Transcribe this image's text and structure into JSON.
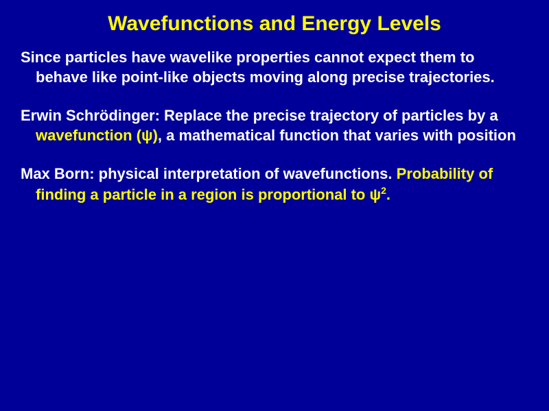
{
  "title": "Wavefunctions and Energy Levels",
  "para1": "Since particles have wavelike properties cannot expect them to behave like point-like objects moving along precise trajectories.",
  "para2_pre": "Erwin Schrödinger: Replace the precise trajectory of particles by a ",
  "para2_hl1": "wavefunction (",
  "para2_psi": "ψ",
  "para2_hl2": ")",
  "para2_post": ", a mathematical function that varies with position",
  "para3_pre": "Max Born: physical interpretation of wavefunctions. ",
  "para3_hl1": "Probability of finding a particle in a region is proportional to ",
  "para3_psi": "ψ",
  "para3_sup": "2",
  "para3_hl2": ".",
  "colors": {
    "background": "#000099",
    "text": "#ffffff",
    "highlight": "#ffff00"
  },
  "fonts": {
    "title_size": 30,
    "body_size": 22,
    "weight": "bold"
  }
}
